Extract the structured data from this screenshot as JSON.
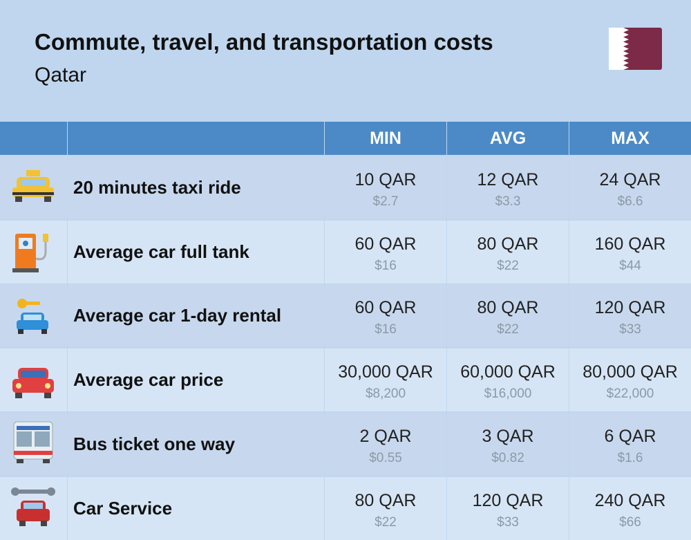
{
  "header": {
    "title": "Commute, travel, and transportation costs",
    "subtitle": "Qatar"
  },
  "table": {
    "columns": [
      "MIN",
      "AVG",
      "MAX"
    ],
    "rows": [
      {
        "label": "20 minutes taxi ride",
        "cells": [
          {
            "local": "10 QAR",
            "usd": "$2.7"
          },
          {
            "local": "12 QAR",
            "usd": "$3.3"
          },
          {
            "local": "24 QAR",
            "usd": "$6.6"
          }
        ]
      },
      {
        "label": "Average car full tank",
        "cells": [
          {
            "local": "60 QAR",
            "usd": "$16"
          },
          {
            "local": "80 QAR",
            "usd": "$22"
          },
          {
            "local": "160 QAR",
            "usd": "$44"
          }
        ]
      },
      {
        "label": "Average car 1-day rental",
        "cells": [
          {
            "local": "60 QAR",
            "usd": "$16"
          },
          {
            "local": "80 QAR",
            "usd": "$22"
          },
          {
            "local": "120 QAR",
            "usd": "$33"
          }
        ]
      },
      {
        "label": "Average car price",
        "cells": [
          {
            "local": "30,000 QAR",
            "usd": "$8,200"
          },
          {
            "local": "60,000 QAR",
            "usd": "$16,000"
          },
          {
            "local": "80,000 QAR",
            "usd": "$22,000"
          }
        ]
      },
      {
        "label": "Bus ticket one way",
        "cells": [
          {
            "local": "2 QAR",
            "usd": "$0.55"
          },
          {
            "local": "3 QAR",
            "usd": "$0.82"
          },
          {
            "local": "6 QAR",
            "usd": "$1.6"
          }
        ]
      },
      {
        "label": "Car Service",
        "cells": [
          {
            "local": "80 QAR",
            "usd": "$22"
          },
          {
            "local": "120 QAR",
            "usd": "$33"
          },
          {
            "local": "240 QAR",
            "usd": "$66"
          }
        ]
      }
    ]
  }
}
